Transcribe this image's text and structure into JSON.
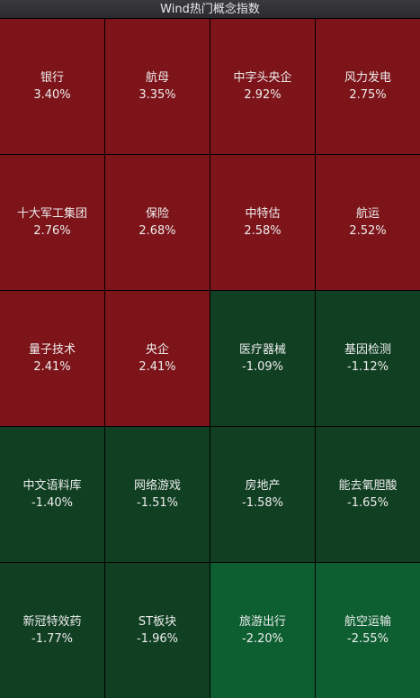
{
  "header": {
    "title": "Wind热门概念指数"
  },
  "colors": {
    "up": "#7d1419",
    "down": "#103f22",
    "down_strong": "#0d5e31"
  },
  "tiles": [
    {
      "name": "银行",
      "change": "3.40%",
      "tone": "up"
    },
    {
      "name": "航母",
      "change": "3.35%",
      "tone": "up"
    },
    {
      "name": "中字头央企",
      "change": "2.92%",
      "tone": "up"
    },
    {
      "name": "风力发电",
      "change": "2.75%",
      "tone": "up"
    },
    {
      "name": "十大军工集团",
      "change": "2.76%",
      "tone": "up"
    },
    {
      "name": "保险",
      "change": "2.68%",
      "tone": "up"
    },
    {
      "name": "中特估",
      "change": "2.58%",
      "tone": "up"
    },
    {
      "name": "航运",
      "change": "2.52%",
      "tone": "up"
    },
    {
      "name": "量子技术",
      "change": "2.41%",
      "tone": "up"
    },
    {
      "name": "央企",
      "change": "2.41%",
      "tone": "up"
    },
    {
      "name": "医疗器械",
      "change": "-1.09%",
      "tone": "down"
    },
    {
      "name": "基因检测",
      "change": "-1.12%",
      "tone": "down"
    },
    {
      "name": "中文语料库",
      "change": "-1.40%",
      "tone": "down"
    },
    {
      "name": "网络游戏",
      "change": "-1.51%",
      "tone": "down"
    },
    {
      "name": "房地产",
      "change": "-1.58%",
      "tone": "down"
    },
    {
      "name": "能去氧胆酸",
      "change": "-1.65%",
      "tone": "down"
    },
    {
      "name": "新冠特效药",
      "change": "-1.77%",
      "tone": "down"
    },
    {
      "name": "ST板块",
      "change": "-1.96%",
      "tone": "down"
    },
    {
      "name": "旅游出行",
      "change": "-2.20%",
      "tone": "down_strong"
    },
    {
      "name": "航空运输",
      "change": "-2.55%",
      "tone": "down_strong"
    }
  ]
}
